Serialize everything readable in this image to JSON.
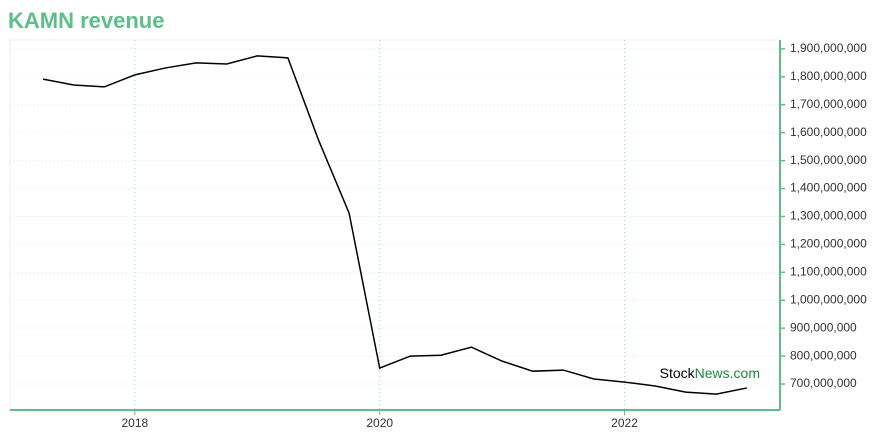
{
  "chart_data": {
    "type": "line",
    "title": "KAMN revenue",
    "x": [
      2017.25,
      2017.5,
      2017.75,
      2018,
      2018.25,
      2018.5,
      2018.75,
      2019,
      2019.25,
      2019.5,
      2019.75,
      2020,
      2020.25,
      2020.5,
      2020.75,
      2021,
      2021.25,
      2021.5,
      2021.75,
      2022,
      2022.25,
      2022.5,
      2022.75,
      2023
    ],
    "series": [
      {
        "name": "KAMN revenue",
        "color": "#000000",
        "values": [
          1792000000,
          1771000000,
          1764000000,
          1807000000,
          1832000000,
          1850000000,
          1846000000,
          1875000000,
          1868000000,
          1574000000,
          1312000000,
          757000000,
          800000000,
          803000000,
          832000000,
          782000000,
          746000000,
          750000000,
          718000000,
          707000000,
          693000000,
          671000000,
          664000000,
          686000000
        ]
      }
    ],
    "xlim": [
      2016.98,
      2023.27
    ],
    "xticks": [
      2018,
      2020,
      2022
    ],
    "ylim": [
      607000000,
      1932000000
    ],
    "yticks": [
      {
        "value": 700000000,
        "label": "700,000,000"
      },
      {
        "value": 800000000,
        "label": "800,000,000"
      },
      {
        "value": 900000000,
        "label": "900,000,000"
      },
      {
        "value": 1000000000,
        "label": "1,000,000,000"
      },
      {
        "value": 1100000000,
        "label": "1,100,000,000"
      },
      {
        "value": 1200000000,
        "label": "1,200,000,000"
      },
      {
        "value": 1300000000,
        "label": "1,300,000,000"
      },
      {
        "value": 1400000000,
        "label": "1,400,000,000"
      },
      {
        "value": 1500000000,
        "label": "1,500,000,000"
      },
      {
        "value": 1600000000,
        "label": "1,600,000,000"
      },
      {
        "value": 1700000000,
        "label": "1,700,000,000"
      },
      {
        "value": 1800000000,
        "label": "1,800,000,000"
      },
      {
        "value": 1900000000,
        "label": "1,900,000,000"
      }
    ],
    "grid": true,
    "axis_color": "#5cbf8a",
    "watermark": {
      "prefix": "Stock",
      "suffix": "News.com"
    }
  }
}
